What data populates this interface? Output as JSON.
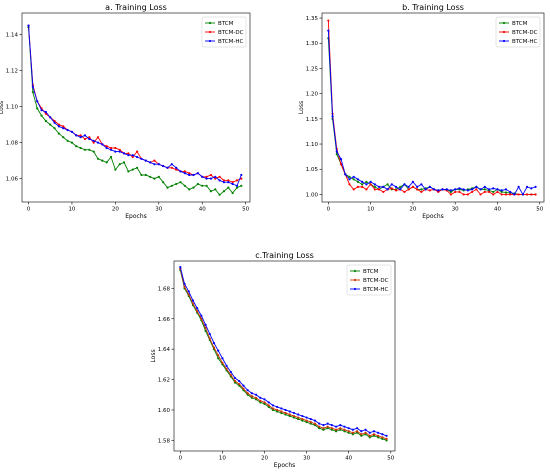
{
  "chart_data": [
    {
      "type": "line",
      "title": "a. Training Loss",
      "xlabel": "Epochs",
      "ylabel": "Loss",
      "xlim": [
        -1.5,
        51
      ],
      "ylim": [
        1.047,
        1.152
      ],
      "xticks": [
        0,
        10,
        20,
        30,
        40,
        50
      ],
      "yticks": [
        1.06,
        1.08,
        1.1,
        1.12,
        1.14
      ],
      "ytick_labels": [
        "1.06",
        "1.08",
        "1.10",
        "1.12",
        "1.14"
      ],
      "legend_position": "top-right",
      "grid": false,
      "x": [
        0,
        1,
        2,
        3,
        4,
        5,
        6,
        7,
        8,
        9,
        10,
        11,
        12,
        13,
        14,
        15,
        16,
        17,
        18,
        19,
        20,
        21,
        22,
        23,
        24,
        25,
        26,
        27,
        28,
        29,
        30,
        31,
        32,
        33,
        34,
        35,
        36,
        37,
        38,
        39,
        40,
        41,
        42,
        43,
        44,
        45,
        46,
        47,
        48,
        49
      ],
      "series": [
        {
          "name": "BTCM",
          "color": "#008000",
          "values": [
            1.144,
            1.108,
            1.099,
            1.095,
            1.092,
            1.09,
            1.088,
            1.085,
            1.083,
            1.081,
            1.08,
            1.078,
            1.077,
            1.076,
            1.076,
            1.075,
            1.071,
            1.07,
            1.069,
            1.072,
            1.065,
            1.068,
            1.069,
            1.064,
            1.065,
            1.066,
            1.062,
            1.062,
            1.061,
            1.06,
            1.061,
            1.058,
            1.055,
            1.056,
            1.057,
            1.058,
            1.056,
            1.054,
            1.055,
            1.057,
            1.056,
            1.056,
            1.053,
            1.054,
            1.051,
            1.053,
            1.055,
            1.052,
            1.055,
            1.056
          ]
        },
        {
          "name": "BTCM-DC",
          "color": "#ff0000",
          "values": [
            1.145,
            1.112,
            1.103,
            1.099,
            1.096,
            1.094,
            1.092,
            1.09,
            1.089,
            1.087,
            1.086,
            1.084,
            1.084,
            1.082,
            1.083,
            1.08,
            1.083,
            1.079,
            1.078,
            1.077,
            1.077,
            1.076,
            1.074,
            1.074,
            1.072,
            1.075,
            1.071,
            1.07,
            1.069,
            1.07,
            1.068,
            1.067,
            1.066,
            1.066,
            1.065,
            1.064,
            1.064,
            1.063,
            1.062,
            1.063,
            1.061,
            1.061,
            1.062,
            1.06,
            1.061,
            1.059,
            1.059,
            1.058,
            1.059,
            1.06
          ]
        },
        {
          "name": "BTCM-HC",
          "color": "#0000ff",
          "values": [
            1.145,
            1.111,
            1.103,
            1.098,
            1.097,
            1.094,
            1.091,
            1.089,
            1.088,
            1.087,
            1.086,
            1.084,
            1.083,
            1.084,
            1.082,
            1.081,
            1.08,
            1.079,
            1.077,
            1.076,
            1.075,
            1.075,
            1.074,
            1.073,
            1.073,
            1.072,
            1.071,
            1.07,
            1.069,
            1.068,
            1.068,
            1.067,
            1.066,
            1.068,
            1.066,
            1.064,
            1.063,
            1.062,
            1.062,
            1.063,
            1.061,
            1.06,
            1.06,
            1.061,
            1.059,
            1.058,
            1.058,
            1.057,
            1.056,
            1.062
          ]
        }
      ]
    },
    {
      "type": "line",
      "title": "b. Training Loss",
      "xlabel": "Epochs",
      "ylabel": "Loss",
      "xlim": [
        -1.5,
        51
      ],
      "ylim": [
        0.985,
        1.36
      ],
      "xticks": [
        0,
        10,
        20,
        30,
        40,
        50
      ],
      "yticks": [
        1.0,
        1.05,
        1.1,
        1.15,
        1.2,
        1.25,
        1.3,
        1.35
      ],
      "ytick_labels": [
        "1.00",
        "1.05",
        "1.10",
        "1.15",
        "1.20",
        "1.25",
        "1.30",
        "1.35"
      ],
      "legend_position": "top-right",
      "grid": false,
      "x": [
        0,
        1,
        2,
        3,
        4,
        5,
        6,
        7,
        8,
        9,
        10,
        11,
        12,
        13,
        14,
        15,
        16,
        17,
        18,
        19,
        20,
        21,
        22,
        23,
        24,
        25,
        26,
        27,
        28,
        29,
        30,
        31,
        32,
        33,
        34,
        35,
        36,
        37,
        38,
        39,
        40,
        41,
        42,
        43,
        44,
        45,
        46,
        47,
        48,
        49
      ],
      "series": [
        {
          "name": "BTCM",
          "color": "#008000",
          "values": [
            1.31,
            1.15,
            1.08,
            1.06,
            1.04,
            1.035,
            1.03,
            1.025,
            1.02,
            1.025,
            1.02,
            1.015,
            1.01,
            1.015,
            1.02,
            1.01,
            1.01,
            1.015,
            1.02,
            1.01,
            1.015,
            1.01,
            1.01,
            1.012,
            1.015,
            1.01,
            1.008,
            1.01,
            1.01,
            1.005,
            1.01,
            1.01,
            1.008,
            1.01,
            1.012,
            1.015,
            1.01,
            1.01,
            1.008,
            1.005,
            1.01,
            1.005,
            1.004,
            1.003,
            1.002,
            1.0,
            1.0,
            1.0,
            1.0,
            1.0
          ]
        },
        {
          "name": "BTCM-DC",
          "color": "#ff0000",
          "values": [
            1.345,
            1.16,
            1.09,
            1.06,
            1.04,
            1.02,
            1.01,
            1.015,
            1.015,
            1.01,
            1.02,
            1.01,
            1.01,
            1.005,
            1.01,
            1.012,
            1.008,
            1.01,
            1.005,
            1.01,
            1.015,
            1.01,
            1.005,
            1.01,
            1.008,
            1.01,
            1.005,
            1.01,
            1.008,
            1.0,
            1.005,
            1.005,
            1.0,
            1.0,
            1.005,
            1.01,
            1.0,
            1.005,
            1.005,
            1.0,
            1.005,
            1.0,
            1.0,
            1.0,
            1.0,
            1.0,
            1.0,
            1.0,
            1.0,
            1.0
          ]
        },
        {
          "name": "BTCM-HC",
          "color": "#0000ff",
          "values": [
            1.325,
            1.155,
            1.085,
            1.07,
            1.04,
            1.03,
            1.035,
            1.03,
            1.025,
            1.02,
            1.025,
            1.02,
            1.015,
            1.015,
            1.01,
            1.02,
            1.015,
            1.01,
            1.02,
            1.015,
            1.025,
            1.015,
            1.02,
            1.01,
            1.015,
            1.01,
            1.008,
            1.01,
            1.01,
            1.008,
            1.01,
            1.012,
            1.01,
            1.008,
            1.01,
            1.015,
            1.01,
            1.015,
            1.01,
            1.012,
            1.01,
            1.008,
            1.01,
            1.005,
            1.0,
            1.015,
            1.0,
            1.015,
            1.012,
            1.015
          ]
        }
      ]
    },
    {
      "type": "line",
      "title": "c.Training Loss",
      "xlabel": "Epochs",
      "ylabel": "Loss",
      "xlim": [
        -1.5,
        51
      ],
      "ylim": [
        1.573,
        1.698
      ],
      "xticks": [
        0,
        10,
        20,
        30,
        40,
        50
      ],
      "yticks": [
        1.58,
        1.6,
        1.62,
        1.64,
        1.66,
        1.68
      ],
      "ytick_labels": [
        "1.58",
        "1.60",
        "1.62",
        "1.64",
        "1.66",
        "1.68"
      ],
      "legend_position": "top-right",
      "grid": false,
      "x": [
        0,
        1,
        2,
        3,
        4,
        5,
        6,
        7,
        8,
        9,
        10,
        11,
        12,
        13,
        14,
        15,
        16,
        17,
        18,
        19,
        20,
        21,
        22,
        23,
        24,
        25,
        26,
        27,
        28,
        29,
        30,
        31,
        32,
        33,
        34,
        35,
        36,
        37,
        38,
        39,
        40,
        41,
        42,
        43,
        44,
        45,
        46,
        47,
        48,
        49
      ],
      "series": [
        {
          "name": "BTCM",
          "color": "#008000",
          "values": [
            1.692,
            1.68,
            1.675,
            1.669,
            1.664,
            1.659,
            1.652,
            1.646,
            1.64,
            1.634,
            1.63,
            1.626,
            1.622,
            1.618,
            1.616,
            1.613,
            1.61,
            1.608,
            1.607,
            1.605,
            1.604,
            1.602,
            1.6,
            1.599,
            1.598,
            1.597,
            1.596,
            1.595,
            1.594,
            1.593,
            1.592,
            1.591,
            1.59,
            1.588,
            1.587,
            1.588,
            1.587,
            1.586,
            1.587,
            1.586,
            1.585,
            1.584,
            1.585,
            1.583,
            1.584,
            1.582,
            1.583,
            1.582,
            1.581,
            1.58
          ]
        },
        {
          "name": "BTCM-DC",
          "color": "#cc3300",
          "values": [
            1.693,
            1.681,
            1.676,
            1.67,
            1.665,
            1.66,
            1.654,
            1.647,
            1.641,
            1.636,
            1.631,
            1.627,
            1.623,
            1.619,
            1.617,
            1.614,
            1.611,
            1.609,
            1.608,
            1.606,
            1.605,
            1.603,
            1.601,
            1.6,
            1.599,
            1.598,
            1.597,
            1.596,
            1.595,
            1.594,
            1.593,
            1.592,
            1.591,
            1.589,
            1.588,
            1.589,
            1.588,
            1.587,
            1.588,
            1.587,
            1.586,
            1.585,
            1.586,
            1.584,
            1.585,
            1.583,
            1.584,
            1.583,
            1.582,
            1.581
          ]
        },
        {
          "name": "BTCM-HC",
          "color": "#0000ff",
          "values": [
            1.694,
            1.683,
            1.678,
            1.672,
            1.667,
            1.662,
            1.656,
            1.65,
            1.644,
            1.639,
            1.634,
            1.629,
            1.625,
            1.621,
            1.619,
            1.616,
            1.613,
            1.611,
            1.61,
            1.608,
            1.607,
            1.605,
            1.603,
            1.602,
            1.601,
            1.6,
            1.599,
            1.598,
            1.597,
            1.596,
            1.595,
            1.594,
            1.593,
            1.591,
            1.59,
            1.591,
            1.59,
            1.589,
            1.59,
            1.589,
            1.588,
            1.587,
            1.588,
            1.586,
            1.587,
            1.585,
            1.586,
            1.585,
            1.584,
            1.583
          ]
        }
      ]
    }
  ]
}
